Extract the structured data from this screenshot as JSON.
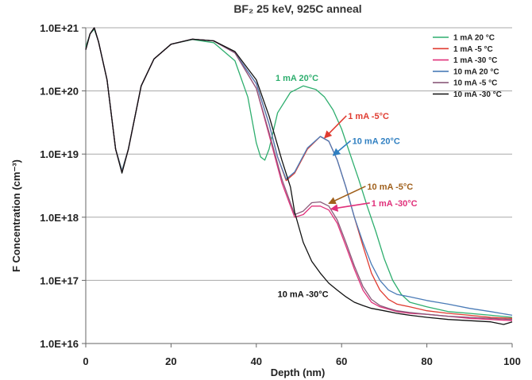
{
  "chart_data": {
    "type": "line",
    "title": "BF₂ 25 keV, 925C anneal",
    "xlabel": "Depth (nm)",
    "ylabel": "F  Concentration (cm⁻³)",
    "x_scale": "linear",
    "y_scale": "log",
    "xlim": [
      0,
      100
    ],
    "ylim": [
      1e+16,
      1e+21
    ],
    "x_ticks": [
      "0",
      "20",
      "40",
      "60",
      "80",
      "100"
    ],
    "y_ticks": [
      "1.0E+16",
      "1.0E+17",
      "1.0E+18",
      "1.0E+19",
      "1.0E+20",
      "1.0E+21"
    ],
    "grid": "horizontal",
    "legend_position": "top-right",
    "series": [
      {
        "name": "1 mA 20 °C",
        "color": "#2eae6e",
        "x": [
          0,
          1,
          2,
          3,
          5,
          7,
          8.5,
          10,
          13,
          16,
          20,
          25,
          30,
          35,
          38,
          40,
          41,
          42,
          43,
          45,
          48,
          51,
          54,
          56,
          58,
          60,
          62,
          64,
          66,
          68,
          70,
          72,
          74,
          76,
          80,
          85,
          90,
          95,
          100
        ],
        "y": [
          5e+20,
          8e+20,
          9.5e+20,
          6e+20,
          1.5e+20,
          1.2e+19,
          5.5e+18,
          1.2e+19,
          1.2e+20,
          3.2e+20,
          5.5e+20,
          6.5e+20,
          5.8e+20,
          3e+20,
          8e+19,
          1.5e+19,
          9e+18,
          8e+18,
          1.2e+19,
          4.5e+19,
          9.5e+19,
          1.2e+20,
          1.05e+20,
          8e+19,
          5e+19,
          2.5e+19,
          1e+19,
          4e+18,
          1.5e+18,
          6e+17,
          2.2e+17,
          1e+17,
          6e+16,
          4.5e+16,
          3.8e+16,
          3.2e+16,
          3e+16,
          2.8e+16,
          2.6e+16
        ]
      },
      {
        "name": "1 mA -5 °C",
        "color": "#e03c31",
        "x": [
          0,
          1,
          2,
          3,
          5,
          7,
          8.5,
          10,
          13,
          16,
          20,
          25,
          30,
          35,
          40,
          43,
          45,
          47,
          49,
          52,
          55,
          57,
          59,
          61,
          63,
          65,
          67,
          69,
          71,
          73,
          76,
          80,
          85,
          90,
          95,
          100
        ],
        "y": [
          4.5e+20,
          8e+20,
          1e+21,
          6e+20,
          1.5e+20,
          1.2e+19,
          5.2e+18,
          1.2e+19,
          1.2e+20,
          3.2e+20,
          5.5e+20,
          6.6e+20,
          6.2e+20,
          4e+20,
          1.3e+20,
          3e+19,
          9e+18,
          3.8e+18,
          5e+18,
          1.2e+19,
          1.9e+19,
          1.6e+19,
          8e+18,
          3e+18,
          1e+18,
          3.5e+17,
          1.3e+17,
          7e+16,
          5e+16,
          4.2e+16,
          3.8e+16,
          3.3e+16,
          3e+16,
          2.8e+16,
          2.6e+16,
          2.5e+16
        ]
      },
      {
        "name": "1 mA -30 °C",
        "color": "#e0307a",
        "x": [
          0,
          1,
          2,
          3,
          5,
          7,
          8.5,
          10,
          13,
          16,
          20,
          25,
          30,
          35,
          40,
          43,
          46,
          49,
          51,
          53,
          55,
          57,
          59,
          61,
          63,
          65,
          67,
          69,
          71,
          73,
          76,
          80,
          85,
          90,
          95,
          100
        ],
        "y": [
          4.5e+20,
          8e+20,
          1e+21,
          6e+20,
          1.5e+20,
          1.2e+19,
          5.2e+18,
          1.2e+19,
          1.2e+20,
          3.2e+20,
          5.5e+20,
          6.6e+20,
          6.2e+20,
          4e+20,
          1.1e+20,
          2e+19,
          3.5e+18,
          1e+18,
          1.1e+18,
          1.5e+18,
          1.5e+18,
          1.3e+18,
          8e+17,
          3.5e+17,
          1.5e+17,
          7e+16,
          4.5e+16,
          3.8e+16,
          3.5e+16,
          3.2e+16,
          3e+16,
          2.9e+16,
          2.7e+16,
          2.5e+16,
          2.4e+16,
          2.3e+16
        ]
      },
      {
        "name": "10 mA 20 °C",
        "color": "#4a7bb7",
        "x": [
          0,
          1,
          2,
          3,
          5,
          7,
          8.5,
          10,
          13,
          16,
          20,
          25,
          30,
          35,
          40,
          43,
          45,
          47,
          49,
          52,
          55,
          57,
          59,
          61,
          63,
          65,
          67,
          69,
          71,
          73,
          76,
          80,
          85,
          90,
          95,
          100
        ],
        "y": [
          4.5e+20,
          8e+20,
          1e+21,
          6e+20,
          1.5e+20,
          1.2e+19,
          5.4e+18,
          1.2e+19,
          1.2e+20,
          3.2e+20,
          5.5e+20,
          6.6e+20,
          6.2e+20,
          4e+20,
          1.3e+20,
          3e+19,
          9e+18,
          4e+18,
          5.2e+18,
          1.25e+19,
          1.9e+19,
          1.6e+19,
          8e+18,
          3e+18,
          1e+18,
          4e+17,
          1.8e+17,
          1e+17,
          7e+16,
          6e+16,
          5.5e+16,
          4.8e+16,
          4.2e+16,
          3.6e+16,
          3.2e+16,
          2.8e+16
        ]
      },
      {
        "name": "10 mA -5 °C",
        "color": "#8a5a7a",
        "x": [
          0,
          1,
          2,
          3,
          5,
          7,
          8.5,
          10,
          13,
          16,
          20,
          25,
          30,
          35,
          40,
          43,
          46,
          49,
          51,
          53,
          55,
          57,
          59,
          61,
          63,
          65,
          67,
          69,
          71,
          73,
          76,
          80,
          85,
          90,
          95,
          100
        ],
        "y": [
          4.5e+20,
          8e+20,
          1e+21,
          6e+20,
          1.5e+20,
          1.2e+19,
          5.2e+18,
          1.2e+19,
          1.2e+20,
          3.2e+20,
          5.5e+20,
          6.6e+20,
          6.2e+20,
          4e+20,
          1.1e+20,
          2.2e+19,
          4e+18,
          1.1e+18,
          1.25e+18,
          1.7e+18,
          1.75e+18,
          1.5e+18,
          9e+17,
          4e+17,
          1.7e+17,
          8e+16,
          5e+16,
          4e+16,
          3.6e+16,
          3.3e+16,
          3.1e+16,
          2.9e+16,
          2.7e+16,
          2.6e+16,
          2.5e+16,
          2.4e+16
        ]
      },
      {
        "name": "10 mA -30 °C",
        "color": "#111111",
        "x": [
          0,
          1,
          2,
          3,
          5,
          7,
          8.5,
          10,
          13,
          16,
          20,
          25,
          30,
          35,
          40,
          43,
          46,
          48,
          49,
          51,
          53,
          55,
          57,
          59,
          61,
          63,
          65,
          67,
          69,
          71,
          73,
          76,
          80,
          85,
          90,
          95,
          98,
          100
        ],
        "y": [
          4.5e+20,
          8e+20,
          1e+21,
          6e+20,
          1.5e+20,
          1.2e+19,
          5e+18,
          1.2e+19,
          1.2e+20,
          3.2e+20,
          5.5e+20,
          6.6e+20,
          6.2e+20,
          4.2e+20,
          1.5e+20,
          4e+19,
          8e+18,
          3e+18,
          1.2e+18,
          4e+17,
          2e+17,
          1.3e+17,
          9e+16,
          7e+16,
          5.5e+16,
          4.5e+16,
          4e+16,
          3.6e+16,
          3.4e+16,
          3.2e+16,
          3e+16,
          2.8e+16,
          2.6e+16,
          2.4e+16,
          2.3e+16,
          2.2e+16,
          2e+16,
          2.2e+16
        ]
      }
    ],
    "annotations": [
      {
        "text": "1 mA 20°C",
        "color": "#2eae6e",
        "x": 44.5,
        "y": 1.45e+20,
        "arrow": false
      },
      {
        "text": "1 mA -5°C",
        "color": "#e03c31",
        "x": 61.5,
        "y": 3.6e+19,
        "arrow": true,
        "ax": 56,
        "ay": 1.8e+19
      },
      {
        "text": "10 mA 20°C",
        "color": "#2f7fc1",
        "x": 62.5,
        "y": 1.45e+19,
        "arrow": true,
        "ax": 58,
        "ay": 9.5e+18
      },
      {
        "text": "10 mA -5°C",
        "color": "#a0601c",
        "x": 66,
        "y": 2.75e+18,
        "arrow": true,
        "ax": 57,
        "ay": 1.65e+18
      },
      {
        "text": "1 mA -30°C",
        "color": "#e0307a",
        "x": 67,
        "y": 1.5e+18,
        "arrow": true,
        "ax": 57.5,
        "ay": 1.35e+18
      },
      {
        "text": "10 mA -30°C",
        "color": "#111111",
        "x": 45,
        "y": 5.4e+16,
        "arrow": false
      }
    ]
  }
}
